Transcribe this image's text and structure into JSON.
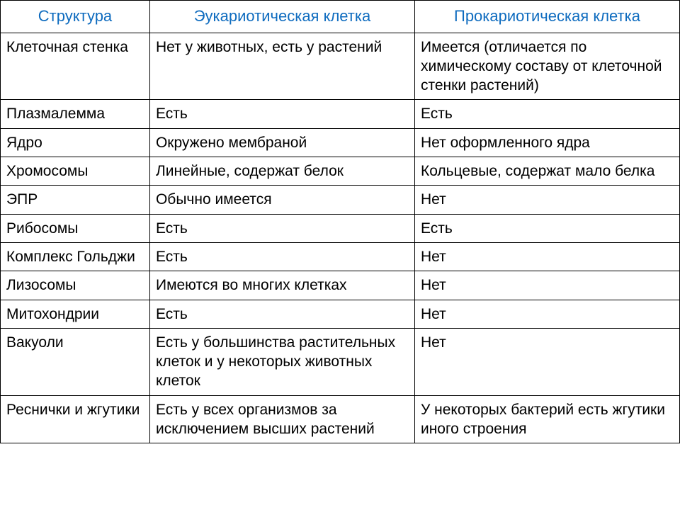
{
  "table": {
    "type": "table",
    "header_color": "#0f6cbf",
    "border_color": "#000000",
    "background_color": "#ffffff",
    "header_fontsize": 22,
    "cell_fontsize": 21,
    "columns": [
      "Структура",
      "Эукариотическая клетка",
      "Прокариотическая клетка"
    ],
    "column_widths_pct": [
      22,
      39,
      39
    ],
    "rows": [
      [
        "Клеточная стенка",
        "Нет у животных, есть у растений",
        "Имеется (отличается по химическому составу от клеточной стенки растений)"
      ],
      [
        "Плазмалемма",
        "Есть",
        "Есть"
      ],
      [
        "Ядро",
        "Окружено мембраной",
        "Нет оформленного ядра"
      ],
      [
        "Хромосомы",
        "Линейные, содержат белок",
        "Кольцевые, содержат мало белка"
      ],
      [
        "ЭПР",
        "Обычно имеется",
        "Нет"
      ],
      [
        "Рибосомы",
        "Есть",
        "Есть"
      ],
      [
        "Комплекс Гольджи",
        "Есть",
        "Нет"
      ],
      [
        "Лизосомы",
        "Имеются во многих клетках",
        "Нет"
      ],
      [
        "Митохондрии",
        "Есть",
        "Нет"
      ],
      [
        "Вакуоли",
        "Есть у большинства растительных клеток и у некоторых животных клеток",
        "Нет"
      ],
      [
        "Реснички и жгутики",
        "Есть у всех организмов за исключением высших растений",
        "У некоторых бактерий есть жгутики иного строения"
      ]
    ]
  }
}
